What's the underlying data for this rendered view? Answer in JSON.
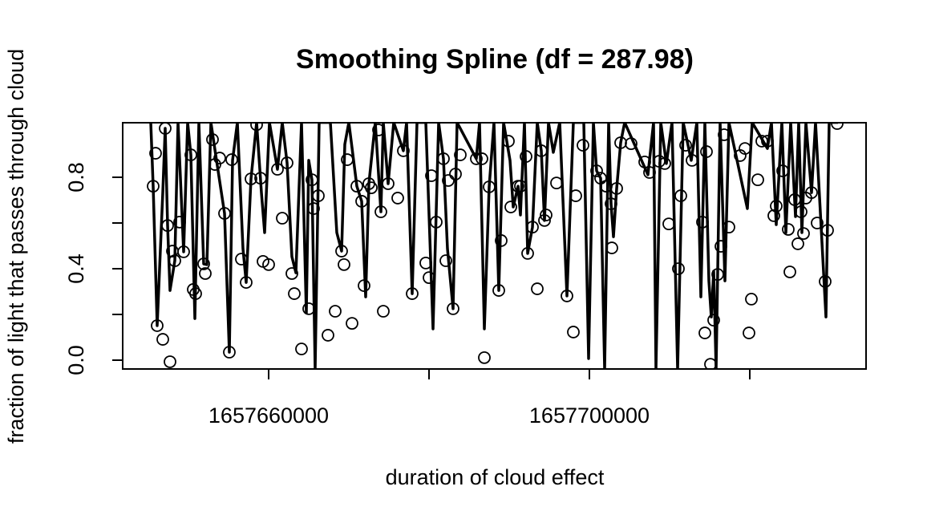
{
  "chart_data": {
    "type": "scatter",
    "title": "Smoothing Spline (df = 287.98)",
    "x_label": "duration of cloud effect",
    "y_label": "fraction of light that passes through cloud",
    "xlim": [
      1657641800,
      1657734500
    ],
    "ylim": [
      -0.0386,
      1.0386
    ],
    "xticks": [
      1657660000,
      {
        "value": 1657680000,
        "label": null
      },
      1657700000,
      {
        "value": 1657720000,
        "label": null
      }
    ],
    "yticks": [
      {
        "value": 0,
        "label": "0.0"
      },
      {
        "value": 0.2,
        "label": null
      },
      0.4,
      {
        "value": 0.6,
        "label": null
      },
      0.8
    ],
    "series": [
      {
        "type": "scatter",
        "color": "#000000",
        "x": [
          1657645600,
          1657645900,
          1657646100,
          1657646800,
          1657647100,
          1657647400,
          1657647700,
          1657648000,
          1657648300,
          1657648900,
          1657649400,
          1657650300,
          1657650600,
          1657650900,
          1657651900,
          1657652100,
          1657653000,
          1657653300,
          1657653900,
          1657654500,
          1657655100,
          1657655400,
          1657656600,
          1657657200,
          1657657800,
          1657658500,
          1657659000,
          1657659300,
          1657660000,
          1657661100,
          1657661700,
          1657662300,
          1657662900,
          1657663200,
          1657664100,
          1657665000,
          1657665400,
          1657665600,
          1657666200,
          1657667400,
          1657668300,
          1657669100,
          1657669400,
          1657669800,
          1657670400,
          1657671000,
          1657671600,
          1657671900,
          1657672500,
          1657672800,
          1657673700,
          1657674000,
          1657674300,
          1657674900,
          1657676100,
          1657676800,
          1657677900,
          1657679600,
          1657680000,
          1657680300,
          1657680900,
          1657681800,
          1657682100,
          1657682400,
          1657683000,
          1657683300,
          1657683900,
          1657685900,
          1657686600,
          1657686900,
          1657687500,
          1657688700,
          1657689000,
          1657689900,
          1657690200,
          1657691100,
          1657691400,
          1657692100,
          1657692300,
          1657692900,
          1657693500,
          1657694000,
          1657694400,
          1657694600,
          1657695900,
          1657697200,
          1657698000,
          1657698300,
          1657699200,
          1657700900,
          1657701400,
          1657702100,
          1657702700,
          1657702800,
          1657703400,
          1657703900,
          1657705200,
          1657706900,
          1657707500,
          1657708700,
          1657709400,
          1657709900,
          1657711100,
          1657711400,
          1657712000,
          1657712800,
          1657714100,
          1657714400,
          1657714600,
          1657715100,
          1657715500,
          1657716000,
          1657716400,
          1657716800,
          1657717400,
          1657718800,
          1657719400,
          1657719900,
          1657720200,
          1657721000,
          1657721500,
          1657722200,
          1657723000,
          1657723300,
          1657724100,
          1657724800,
          1657725000,
          1657725600,
          1657726000,
          1657726400,
          1657726700,
          1657727000,
          1657727700,
          1657728400,
          1657729400,
          1657729700,
          1657730900
        ],
        "values": [
          0.761,
          0.905,
          0.151,
          0.091,
          1.014,
          0.589,
          -0.007,
          0.477,
          0.435,
          0.604,
          0.474,
          0.898,
          0.309,
          0.291,
          0.421,
          0.379,
          0.965,
          0.856,
          0.884,
          0.642,
          0.035,
          0.877,
          0.442,
          0.34,
          0.793,
          1.03,
          0.796,
          0.432,
          0.418,
          0.835,
          0.621,
          0.863,
          0.379,
          0.291,
          0.049,
          0.225,
          0.789,
          0.663,
          0.719,
          0.109,
          0.214,
          0.477,
          0.418,
          0.877,
          0.161,
          0.761,
          0.695,
          0.326,
          0.772,
          0.754,
          1.007,
          0.649,
          0.214,
          0.772,
          0.709,
          0.916,
          0.291,
          0.425,
          0.361,
          0.807,
          0.604,
          0.881,
          0.435,
          0.786,
          0.225,
          0.814,
          0.898,
          0.881,
          0.881,
          0.011,
          0.758,
          0.305,
          0.523,
          0.958,
          0.67,
          0.761,
          0.761,
          0.891,
          0.467,
          0.582,
          0.312,
          0.916,
          0.611,
          0.635,
          0.775,
          0.281,
          0.123,
          0.719,
          0.94,
          0.828,
          0.796,
          0.761,
          0.684,
          0.491,
          0.751,
          0.951,
          0.947,
          0.867,
          0.821,
          0.87,
          0.86,
          0.596,
          0.4,
          0.719,
          0.94,
          0.874,
          0.604,
          0.119,
          0.912,
          -0.018,
          0.175,
          0.375,
          0.498,
          0.986,
          0.582,
          0.895,
          0.926,
          0.119,
          0.267,
          0.789,
          0.958,
          0.958,
          0.632,
          0.674,
          0.828,
          0.572,
          0.386,
          0.702,
          0.509,
          0.649,
          0.554,
          0.709,
          0.733,
          0.6,
          0.344,
          0.568,
          1.035
        ]
      },
      {
        "type": "line",
        "color": "#000000",
        "x": [
          1657645300,
          1657645600,
          1657646100,
          1657646800,
          1657647100,
          1657647400,
          1657647700,
          1657648300,
          1657648700,
          1657649400,
          1657649900,
          1657650300,
          1657650800,
          1657651300,
          1657651900,
          1657652300,
          1657652800,
          1657653500,
          1657654500,
          1657655100,
          1657655500,
          1657656100,
          1657656800,
          1657657200,
          1657657800,
          1657658500,
          1657659100,
          1657659500,
          1657660100,
          1657661100,
          1657661700,
          1657662300,
          1657662900,
          1657663400,
          1657664100,
          1657664700,
          1657665000,
          1657665400,
          1657665800,
          1657666300,
          1657667700,
          1657668500,
          1657669100,
          1657669500,
          1657670000,
          1657671000,
          1657671600,
          1657672100,
          1657672500,
          1657673300,
          1657674000,
          1657674300,
          1657674900,
          1657675600,
          1657676800,
          1657677200,
          1657677900,
          1657678500,
          1657679600,
          1657680500,
          1657681200,
          1657681800,
          1657682300,
          1657683000,
          1657683500,
          1657685900,
          1657686300,
          1657686900,
          1657687500,
          1657688100,
          1657688700,
          1657689300,
          1657690100,
          1657690500,
          1657691100,
          1657691400,
          1657691900,
          1657692300,
          1657692900,
          1657693500,
          1657694000,
          1657694400,
          1657694900,
          1657695500,
          1657696300,
          1657697200,
          1657698000,
          1657699300,
          1657699900,
          1657700500,
          1657700900,
          1657701400,
          1657701900,
          1657702400,
          1657702700,
          1657703000,
          1657703400,
          1657703900,
          1657704400,
          1657707300,
          1657708000,
          1657708300,
          1657708900,
          1657709600,
          1657710300,
          1657711000,
          1657711700,
          1657712700,
          1657713400,
          1657713900,
          1657714400,
          1657714900,
          1657715200,
          1657715500,
          1657715800,
          1657716300,
          1657716900,
          1657717400,
          1657719700,
          1657720300,
          1657722200,
          1657722700,
          1657723300,
          1657724000,
          1657724500,
          1657725100,
          1657725700,
          1657726100,
          1657726500,
          1657727000,
          1657727700,
          1657728200,
          1657729500,
          1657729900,
          1657731000
        ],
        "values": [
          1.04,
          0.761,
          0.151,
          0.733,
          1.014,
          0.589,
          0.305,
          0.435,
          1.04,
          0.474,
          1.04,
          0.898,
          0.182,
          1.04,
          0.421,
          0.418,
          1.04,
          0.874,
          0.642,
          0.035,
          0.874,
          1.04,
          0.488,
          0.34,
          0.793,
          1.04,
          0.733,
          0.558,
          1.04,
          0.835,
          1.04,
          0.863,
          0.453,
          0.382,
          1.04,
          0.207,
          0.874,
          0.789,
          -0.04,
          1.04,
          1.04,
          0.558,
          0.477,
          0.944,
          1.04,
          0.761,
          0.695,
          0.277,
          0.772,
          1.04,
          0.649,
          1.04,
          0.772,
          1.04,
          0.916,
          1.04,
          0.291,
          1.04,
          1.04,
          0.137,
          1.04,
          0.881,
          0.488,
          0.225,
          1.04,
          0.881,
          1.04,
          0.137,
          0.758,
          1.04,
          0.305,
          1.04,
          0.874,
          0.67,
          0.761,
          0.635,
          1.04,
          0.467,
          0.582,
          1.04,
          0.916,
          0.611,
          1.04,
          0.909,
          1.04,
          0.281,
          1.04,
          1.04,
          0.007,
          1.04,
          0.828,
          0.796,
          -0.04,
          1.04,
          0.684,
          0.54,
          0.751,
          0.951,
          1.04,
          0.811,
          1.04,
          -0.04,
          1.04,
          0.86,
          1.04,
          -0.04,
          1.04,
          0.874,
          1.04,
          0.277,
          1.04,
          0.347,
          0.189,
          0.389,
          -0.04,
          1.04,
          0.347,
          1.04,
          0.663,
          1.04,
          0.926,
          1.04,
          0.593,
          1.04,
          0.558,
          1.04,
          0.628,
          1.04,
          0.558,
          1.04,
          0.733,
          1.04,
          0.189,
          1.04,
          1.04
        ]
      }
    ]
  }
}
